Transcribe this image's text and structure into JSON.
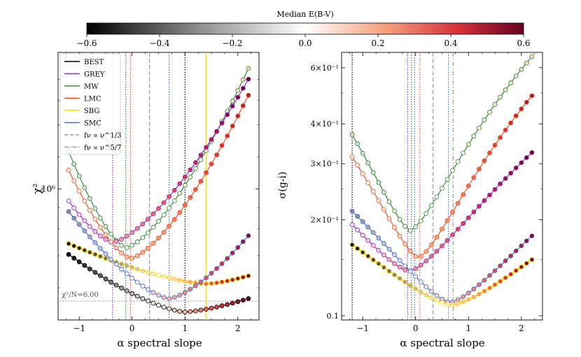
{
  "colorbar": {
    "label": "Median E(B-V)",
    "range": [
      -0.6,
      0.6
    ],
    "ticks": [
      "−0.6",
      "−0.4",
      "−0.2",
      "0.0",
      "0.2",
      "0.4",
      "0.6"
    ],
    "tick_values": [
      -0.6,
      -0.4,
      -0.2,
      0.0,
      0.2,
      0.4,
      0.6
    ]
  },
  "colors": {
    "BEST": "#000000",
    "GREY": "#8a2be2",
    "MW": "#2e8b2e",
    "LMC": "#f0501e",
    "SBG": "#ffd700",
    "SMC": "#4169e1",
    "power13": "#999999",
    "power57": "#999999"
  },
  "chart_data": [
    {
      "type": "line",
      "panel": "left",
      "xlabel": "α spectral slope",
      "ylabel": "χ²",
      "y_scale": "log",
      "xlim": [
        -1.4,
        2.4
      ],
      "ytick_label": "10⁶",
      "xticks": [
        "−1",
        "0",
        "1",
        "2"
      ],
      "xtick_values": [
        -1,
        0,
        1,
        2
      ],
      "threshold_label": "χ²/N=6.00",
      "threshold_value": 6.0,
      "legend": [
        {
          "key": "BEST",
          "label": "BEST",
          "style": "solid"
        },
        {
          "key": "GREY",
          "label": "GREY",
          "style": "solid"
        },
        {
          "key": "MW",
          "label": "MW",
          "style": "solid"
        },
        {
          "key": "LMC",
          "label": "LMC",
          "style": "solid"
        },
        {
          "key": "SBG",
          "label": "SBG",
          "style": "solid"
        },
        {
          "key": "SMC",
          "label": "SMC",
          "style": "solid"
        },
        {
          "key": "power13",
          "label": "fν ∝ ν^1/3",
          "style": "dashed"
        },
        {
          "key": "power57",
          "label": "fν ∝ ν^5/7",
          "style": "dashdot"
        }
      ],
      "vlines": [
        {
          "key": "GREY",
          "x": -0.37
        },
        {
          "key": "MW",
          "x": -0.12
        },
        {
          "key": "LMC",
          "x": -0.03
        },
        {
          "key": "power13",
          "x": 0.33
        },
        {
          "key": "SMC",
          "x": 0.7
        },
        {
          "key": "BEST",
          "x": 1.0
        },
        {
          "key": "SBG",
          "x": 1.4
        }
      ],
      "series": [
        {
          "name": "MW",
          "min_x": -0.12,
          "min_y": 0.27,
          "left_y": 0.63,
          "right_y": 0.94,
          "ebv_min": -0.1,
          "ebv_max": 0.1
        },
        {
          "name": "GREY",
          "min_x": -0.37,
          "min_y": 0.29,
          "left_y": 0.445,
          "right_y": 0.9,
          "ebv_min": 0.05,
          "ebv_max": 0.6
        },
        {
          "name": "LMC",
          "min_x": -0.03,
          "min_y": 0.23,
          "left_y": 0.56,
          "right_y": 0.84,
          "ebv_min": -0.05,
          "ebv_max": 0.5
        },
        {
          "name": "SBG",
          "min_x": 1.4,
          "min_y": 0.135,
          "left_y": 0.285,
          "right_y": 0.165,
          "ebv_min": -0.6,
          "ebv_max": 0.6
        },
        {
          "name": "SMC",
          "min_x": 0.7,
          "min_y": 0.08,
          "left_y": 0.405,
          "right_y": 0.315,
          "ebv_min": -0.3,
          "ebv_max": 0.55
        },
        {
          "name": "BEST",
          "min_x": 1.0,
          "min_y": 0.03,
          "left_y": 0.245,
          "right_y": 0.08,
          "ebv_min": -0.6,
          "ebv_max": 0.6
        }
      ]
    },
    {
      "type": "line",
      "panel": "right",
      "xlabel": "α spectral slope",
      "ylabel": "σ(g-i)",
      "y_scale": "log",
      "xlim": [
        -1.4,
        2.4
      ],
      "ylim": [
        0.097,
        0.67
      ],
      "yticks": [
        {
          "value": 0.6,
          "label": "6×10⁻¹"
        },
        {
          "value": 0.4,
          "label": "4×10⁻¹"
        },
        {
          "value": 0.3,
          "label": "3×10⁻¹"
        },
        {
          "value": 0.2,
          "label": "2×10⁻¹"
        },
        {
          "value": 0.1,
          "label": "0.1"
        }
      ],
      "xticks": [
        "−1",
        "0",
        "1",
        "2"
      ],
      "xtick_values": [
        -1,
        0,
        1,
        2
      ],
      "vlines": [
        {
          "key": "BEST",
          "x": -1.2
        },
        {
          "key": "GREY",
          "x": -0.15
        },
        {
          "key": "MW",
          "x": -0.08
        },
        {
          "key": "SMC",
          "x": -0.02
        },
        {
          "key": "LMC",
          "x": 0.08
        },
        {
          "key": "power13",
          "x": 0.33
        },
        {
          "key": "SMC",
          "x": 0.62
        },
        {
          "key": "power57",
          "x": 0.71
        }
      ],
      "series": [
        {
          "name": "MW",
          "min_x": -0.1,
          "min_y": 0.185,
          "left_y": 0.37,
          "right_y": 0.65,
          "ebv_min": -0.1,
          "ebv_max": 0.1
        },
        {
          "name": "LMC",
          "min_x": 0.05,
          "min_y": 0.152,
          "left_y": 0.315,
          "right_y": 0.49,
          "ebv_min": -0.05,
          "ebv_max": 0.5
        },
        {
          "name": "GREY",
          "min_x": -0.12,
          "min_y": 0.138,
          "left_y": 0.193,
          "right_y": 0.325,
          "ebv_min": 0.05,
          "ebv_max": 0.6
        },
        {
          "name": "SMC",
          "min_x": 0.65,
          "min_y": 0.11,
          "left_y": 0.213,
          "right_y": 0.178,
          "ebv_min": -0.3,
          "ebv_max": 0.55
        },
        {
          "name": "SBG",
          "min_x": 0.68,
          "min_y": 0.108,
          "left_y": 0.167,
          "right_y": 0.15,
          "ebv_min": -0.6,
          "ebv_max": 0.6
        }
      ]
    }
  ]
}
